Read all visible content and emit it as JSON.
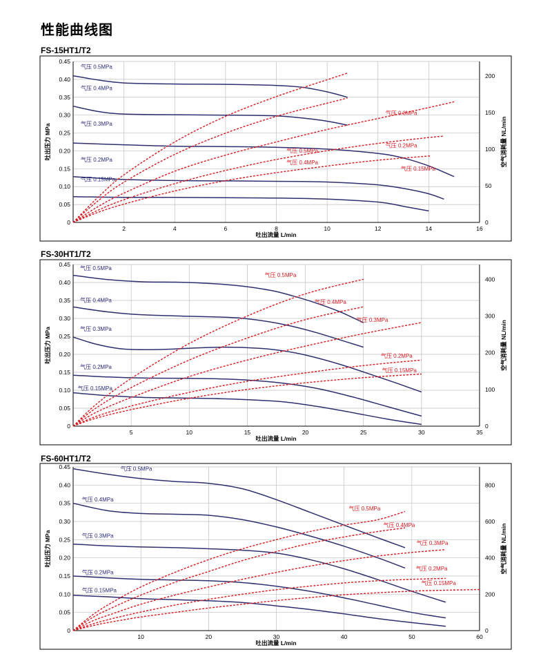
{
  "page_title": "性能曲线图",
  "colors": {
    "pressure_curve": "#2f2f6f",
    "air_curve": "#d71920",
    "grid": "#bfbfbf",
    "frame": "#000000"
  },
  "chart_data": [
    {
      "type": "line",
      "title": "FS-15HT1/T2",
      "xlabel": "吐出流量 L/min",
      "ylabel_left": "吐出压力 MPa",
      "ylabel_right": "空气消耗量 NL/min",
      "xlim": [
        0,
        16
      ],
      "xticks": [
        2,
        4,
        6,
        8,
        10,
        12,
        14,
        16
      ],
      "ylim_left": [
        0,
        0.45
      ],
      "yticks_left": [
        "0",
        "0.05",
        "0.10",
        "0.15",
        "0.20",
        "0.25",
        "0.30",
        "0.35",
        "0.40",
        "0.45"
      ],
      "ylim_right": [
        0,
        220
      ],
      "yticks_right": [
        "0",
        "50",
        "100",
        "150",
        "200"
      ],
      "grid": true,
      "series": [
        {
          "name": "气压 0.5MPa",
          "axis": "left",
          "x": [
            0,
            1,
            2,
            4,
            6,
            8,
            9,
            10,
            10.8
          ],
          "y": [
            0.41,
            0.398,
            0.39,
            0.387,
            0.386,
            0.383,
            0.378,
            0.365,
            0.35
          ]
        },
        {
          "name": "气压 0.4MPa",
          "axis": "left",
          "x": [
            0,
            1,
            2,
            4,
            6,
            8,
            9,
            10,
            10.8
          ],
          "y": [
            0.325,
            0.31,
            0.303,
            0.301,
            0.3,
            0.298,
            0.292,
            0.283,
            0.272
          ]
        },
        {
          "name": "气压 0.3MPa",
          "axis": "left",
          "x": [
            0,
            2,
            4,
            6,
            8,
            10,
            12,
            13,
            14,
            15
          ],
          "y": [
            0.222,
            0.217,
            0.213,
            0.212,
            0.21,
            0.205,
            0.193,
            0.18,
            0.158,
            0.128
          ]
        },
        {
          "name": "气压 0.2MPa",
          "axis": "left",
          "x": [
            0,
            2,
            4,
            6,
            8,
            10,
            12,
            13,
            14,
            14.6
          ],
          "y": [
            0.128,
            0.12,
            0.117,
            0.116,
            0.115,
            0.113,
            0.105,
            0.095,
            0.08,
            0.065
          ]
        },
        {
          "name": "气压 0.15MPa",
          "axis": "left",
          "x": [
            0,
            2,
            4,
            6,
            8,
            10,
            12,
            13,
            14
          ],
          "y": [
            0.072,
            0.07,
            0.07,
            0.069,
            0.068,
            0.065,
            0.057,
            0.045,
            0.032
          ]
        },
        {
          "name": "气压 0.5MPa",
          "axis": "right",
          "x": [
            0,
            1,
            2,
            4,
            6,
            8,
            10,
            10.8
          ],
          "y": [
            0,
            35,
            65,
            110,
            145,
            172,
            195,
            204
          ]
        },
        {
          "name": "气压 0.4MPa",
          "axis": "right",
          "x": [
            0,
            1,
            2,
            4,
            6,
            8,
            10,
            10.8
          ],
          "y": [
            0,
            30,
            55,
            93,
            122,
            145,
            163,
            170
          ]
        },
        {
          "name": "气压 0.3MPa",
          "axis": "right",
          "x": [
            0,
            1,
            2,
            4,
            6,
            8,
            10,
            12,
            14,
            15
          ],
          "y": [
            0,
            22,
            40,
            70,
            92,
            110,
            127,
            142,
            157,
            165
          ]
        },
        {
          "name": "气压 0.2MPa",
          "axis": "right",
          "x": [
            0,
            1,
            2,
            4,
            6,
            8,
            10,
            12,
            14,
            14.6
          ],
          "y": [
            0,
            17,
            31,
            53,
            71,
            86,
            98,
            108,
            116,
            118
          ]
        },
        {
          "name": "气压 0.15MPa",
          "axis": "right",
          "x": [
            0,
            1,
            2,
            4,
            6,
            8,
            10,
            12,
            14.1
          ],
          "y": [
            0,
            14,
            25,
            43,
            57,
            68,
            77,
            85,
            91
          ]
        }
      ]
    },
    {
      "type": "line",
      "title": "FS-30HT1/T2",
      "xlabel": "吐出流量 L/min",
      "ylabel_left": "吐出压力 MPa",
      "ylabel_right": "空气消耗量 NL/min",
      "xlim": [
        0,
        35
      ],
      "xticks": [
        5,
        10,
        15,
        20,
        25,
        30,
        35
      ],
      "ylim_left": [
        0,
        0.45
      ],
      "yticks_left": [
        "0",
        "0.05",
        "0.10",
        "0.15",
        "0.20",
        "0.25",
        "0.30",
        "0.35",
        "0.40",
        "0.45"
      ],
      "ylim_right": [
        0,
        440
      ],
      "yticks_right": [
        "0",
        "100",
        "200",
        "300",
        "400"
      ],
      "grid": true,
      "series": [
        {
          "name": "气压 0.5MPa",
          "axis": "left",
          "x": [
            0,
            3,
            6,
            10,
            14,
            17,
            19,
            21,
            23,
            25
          ],
          "y": [
            0.42,
            0.408,
            0.402,
            0.4,
            0.392,
            0.378,
            0.362,
            0.342,
            0.318,
            0.288
          ]
        },
        {
          "name": "气压 0.4MPa",
          "axis": "left",
          "x": [
            0,
            3,
            6,
            10,
            14,
            17,
            19,
            21,
            23,
            25
          ],
          "y": [
            0.332,
            0.318,
            0.31,
            0.306,
            0.302,
            0.29,
            0.277,
            0.26,
            0.24,
            0.22
          ]
        },
        {
          "name": "气压 0.3MPa",
          "axis": "left",
          "x": [
            0,
            2,
            4,
            6,
            8,
            10,
            13,
            16,
            18,
            20,
            23,
            26,
            28,
            30
          ],
          "y": [
            0.248,
            0.228,
            0.216,
            0.213,
            0.214,
            0.217,
            0.22,
            0.217,
            0.21,
            0.198,
            0.172,
            0.14,
            0.118,
            0.095
          ]
        },
        {
          "name": "气压 0.2MPa",
          "axis": "left",
          "x": [
            0,
            3,
            6,
            10,
            14,
            18,
            21,
            24,
            27,
            30
          ],
          "y": [
            0.142,
            0.137,
            0.134,
            0.133,
            0.13,
            0.12,
            0.105,
            0.082,
            0.055,
            0.028
          ]
        },
        {
          "name": "气压 0.15MPa",
          "axis": "left",
          "x": [
            0,
            3,
            6,
            10,
            14,
            18,
            21,
            24,
            27,
            30
          ],
          "y": [
            0.093,
            0.085,
            0.08,
            0.078,
            0.075,
            0.068,
            0.055,
            0.038,
            0.02,
            0.005
          ]
        },
        {
          "name": "气压 0.5MPa",
          "axis": "right",
          "x": [
            0,
            2,
            5,
            10,
            15,
            20,
            25
          ],
          "y": [
            0,
            60,
            130,
            225,
            300,
            360,
            400
          ]
        },
        {
          "name": "气压 0.4MPa",
          "axis": "right",
          "x": [
            0,
            2,
            5,
            10,
            15,
            20,
            25
          ],
          "y": [
            0,
            50,
            105,
            180,
            240,
            290,
            325
          ]
        },
        {
          "name": "气压 0.3MPa",
          "axis": "right",
          "x": [
            0,
            2,
            5,
            10,
            15,
            20,
            25,
            30
          ],
          "y": [
            0,
            38,
            78,
            135,
            180,
            218,
            252,
            282
          ]
        },
        {
          "name": "气压 0.2MPa",
          "axis": "right",
          "x": [
            0,
            2,
            5,
            10,
            15,
            20,
            25,
            30
          ],
          "y": [
            0,
            27,
            55,
            92,
            122,
            145,
            165,
            180
          ]
        },
        {
          "name": "气压 0.15MPa",
          "axis": "right",
          "x": [
            0,
            2,
            5,
            10,
            15,
            20,
            25,
            30
          ],
          "y": [
            0,
            22,
            45,
            76,
            100,
            118,
            132,
            142
          ]
        }
      ]
    },
    {
      "type": "line",
      "title": "FS-60HT1/T2",
      "xlabel": "吐出流量 L/min",
      "ylabel_left": "吐出压力 MPa",
      "ylabel_right": "空气消耗量 NL/min",
      "xlim": [
        0,
        60
      ],
      "xticks": [
        10,
        20,
        30,
        40,
        50,
        60
      ],
      "ylim_left": [
        0,
        0.45
      ],
      "yticks_left": [
        "0",
        "0.05",
        "0.10",
        "0.15",
        "0.20",
        "0.25",
        "0.30",
        "0.35",
        "0.40",
        "0.45"
      ],
      "ylim_right": [
        0,
        900
      ],
      "yticks_right": [
        "0",
        "200",
        "400",
        "600",
        "800"
      ],
      "grid": true,
      "series": [
        {
          "name": "气压 0.5MPa",
          "axis": "left",
          "x": [
            0,
            5,
            10,
            15,
            20,
            25,
            30,
            35,
            40,
            45,
            49
          ],
          "y": [
            0.445,
            0.43,
            0.418,
            0.41,
            0.405,
            0.39,
            0.36,
            0.325,
            0.29,
            0.255,
            0.228
          ]
        },
        {
          "name": "气压 0.4MPa",
          "axis": "left",
          "x": [
            0,
            5,
            10,
            15,
            20,
            25,
            30,
            35,
            40,
            45,
            49
          ],
          "y": [
            0.35,
            0.33,
            0.322,
            0.32,
            0.317,
            0.305,
            0.285,
            0.26,
            0.232,
            0.2,
            0.172
          ]
        },
        {
          "name": "气压 0.3MPa",
          "axis": "left",
          "x": [
            0,
            5,
            10,
            15,
            20,
            25,
            30,
            35,
            40,
            45,
            50,
            55
          ],
          "y": [
            0.238,
            0.233,
            0.23,
            0.228,
            0.225,
            0.221,
            0.213,
            0.195,
            0.17,
            0.14,
            0.108,
            0.078
          ]
        },
        {
          "name": "气压 0.2MPa",
          "axis": "left",
          "x": [
            0,
            5,
            10,
            15,
            20,
            25,
            30,
            35,
            40,
            45,
            50,
            55
          ],
          "y": [
            0.15,
            0.145,
            0.141,
            0.139,
            0.137,
            0.132,
            0.122,
            0.108,
            0.09,
            0.07,
            0.05,
            0.035
          ]
        },
        {
          "name": "气压 0.15MPa",
          "axis": "left",
          "x": [
            0,
            5,
            10,
            15,
            20,
            25,
            30,
            35,
            40,
            45,
            50,
            55
          ],
          "y": [
            0.097,
            0.093,
            0.088,
            0.085,
            0.082,
            0.077,
            0.068,
            0.058,
            0.046,
            0.033,
            0.022,
            0.012
          ]
        },
        {
          "name": "气压 0.5MPa",
          "axis": "right",
          "x": [
            0,
            3,
            6,
            10,
            15,
            20,
            25,
            30,
            35,
            40,
            45,
            49
          ],
          "y": [
            0,
            90,
            160,
            240,
            320,
            390,
            450,
            500,
            545,
            580,
            610,
            655
          ]
        },
        {
          "name": "气压 0.4MPa",
          "axis": "right",
          "x": [
            0,
            3,
            6,
            10,
            15,
            20,
            25,
            30,
            35,
            40,
            45,
            49
          ],
          "y": [
            0,
            75,
            130,
            195,
            265,
            325,
            385,
            435,
            480,
            515,
            545,
            565
          ]
        },
        {
          "name": "气压 0.3MPa",
          "axis": "right",
          "x": [
            0,
            3,
            6,
            10,
            15,
            20,
            25,
            30,
            35,
            40,
            45,
            50,
            55
          ],
          "y": [
            0,
            55,
            95,
            145,
            195,
            240,
            282,
            320,
            355,
            385,
            410,
            430,
            445
          ]
        },
        {
          "name": "气压 0.2MPa",
          "axis": "right",
          "x": [
            0,
            3,
            6,
            10,
            15,
            20,
            25,
            30,
            35,
            40,
            45,
            50,
            55
          ],
          "y": [
            0,
            38,
            68,
            102,
            140,
            172,
            200,
            225,
            245,
            262,
            274,
            282,
            287
          ]
        },
        {
          "name": "气压 0.15MPa",
          "axis": "right",
          "x": [
            0,
            3,
            6,
            10,
            15,
            20,
            25,
            30,
            35,
            40,
            45,
            50,
            55,
            60
          ],
          "y": [
            0,
            28,
            50,
            75,
            100,
            124,
            145,
            165,
            182,
            197,
            208,
            217,
            222,
            226
          ]
        }
      ]
    }
  ]
}
